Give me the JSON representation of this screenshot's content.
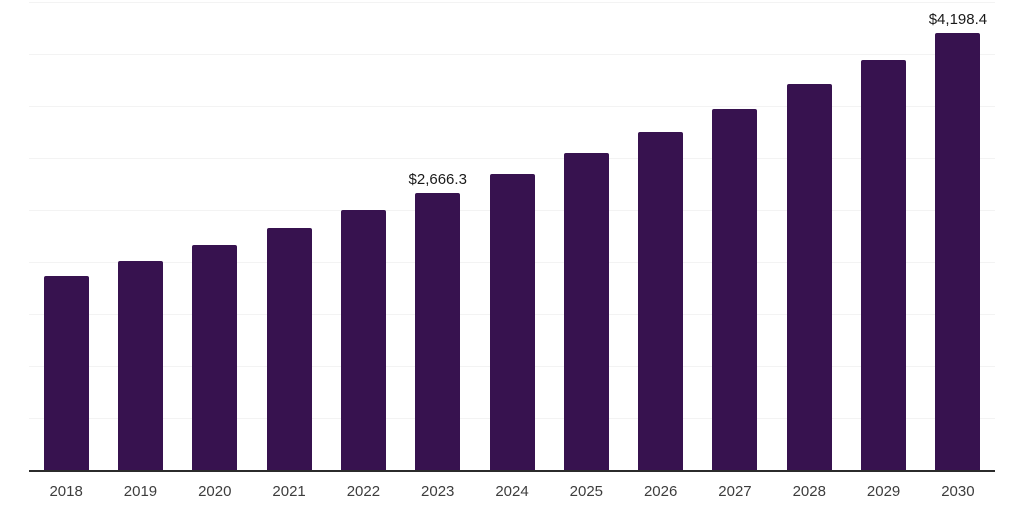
{
  "chart_data": {
    "type": "bar",
    "title": "",
    "xlabel": "",
    "ylabel": "",
    "categories": [
      "2018",
      "2019",
      "2020",
      "2021",
      "2022",
      "2023",
      "2024",
      "2025",
      "2026",
      "2027",
      "2028",
      "2029",
      "2030"
    ],
    "values": [
      1869.2,
      2013.0,
      2166.3,
      2329.3,
      2501.8,
      2666.3,
      2846.9,
      3048.2,
      3249.5,
      3470.0,
      3709.6,
      3939.6,
      4198.4
    ],
    "data_labels": [
      "",
      "",
      "",
      "",
      "",
      "$2,666.3",
      "",
      "",
      "",
      "",
      "",
      "",
      "$4,198.4"
    ],
    "ylim": [
      0,
      4500
    ],
    "gridline_step": 500,
    "grid": "horizontal",
    "legend": "none",
    "colors": {
      "bar": "#37124F",
      "grid": "#f3f3f3",
      "axis": "#2b2b2b",
      "data_label": "#1a1a1a",
      "tick_label": "#3d3d3d",
      "background": "#ffffff"
    }
  }
}
